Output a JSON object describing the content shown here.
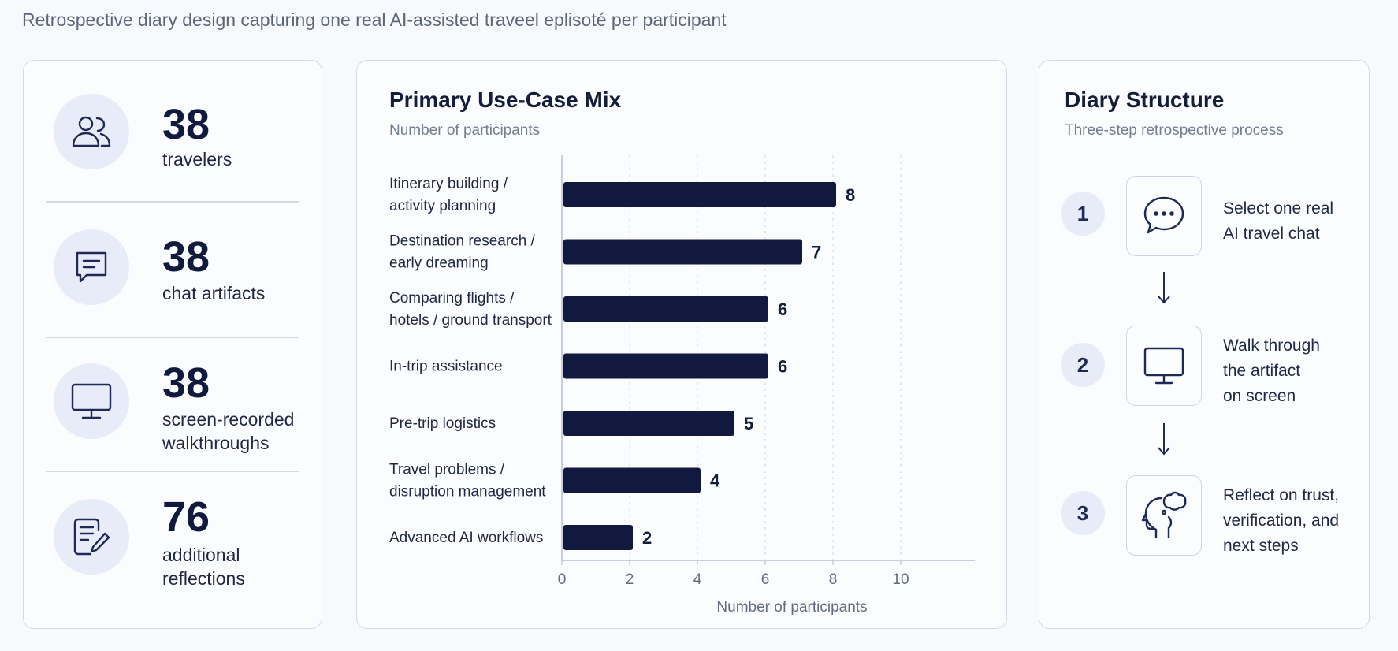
{
  "page": {
    "subtitle": "Retrospective diary design capturing one real AI-assisted traveel eplisoté per participant"
  },
  "stats": [
    {
      "number": "38",
      "label": "travelers",
      "icon": "users-icon"
    },
    {
      "number": "38",
      "label": "chat artifacts",
      "icon": "chat-icon"
    },
    {
      "number": "38",
      "label": "screen-recorded walkthroughs",
      "icon": "monitor-icon"
    },
    {
      "number": "76",
      "label": "additional reflections",
      "icon": "edit-document-icon"
    }
  ],
  "chart": {
    "title": "Primary Use-Case Mix",
    "subtitle": "Number of participants"
  },
  "chart_data": {
    "type": "bar",
    "orientation": "horizontal",
    "title": "Primary Use-Case Mix",
    "subtitle": "Number of participants",
    "categories": [
      [
        "Itinerary building /",
        "activity planning"
      ],
      [
        "Destination research /",
        "early dreaming"
      ],
      [
        "Comparing flights /",
        "hotels / ground transport"
      ],
      [
        "In-trip assistance"
      ],
      [
        "Pre-trip logistics"
      ],
      [
        "Travel problems /",
        "disruption management"
      ],
      [
        "Advanced AI workflows"
      ]
    ],
    "values": [
      8,
      7,
      6,
      6,
      5,
      4,
      2
    ],
    "xlabel": "Number of participants",
    "ylabel": "",
    "xlim": [
      0,
      12
    ],
    "xticks": [
      0,
      2,
      4,
      6,
      8,
      10
    ],
    "bar_color": "#111a3e",
    "grid": "vertical dashed"
  },
  "diary": {
    "title": "Diary Structure",
    "subtitle": "Three-step retrospective process",
    "steps": [
      {
        "number": "1",
        "icon": "chat-dots-icon",
        "lines": [
          "Select one real",
          "AI travel chat"
        ]
      },
      {
        "number": "2",
        "icon": "monitor-icon",
        "lines": [
          "Walk through",
          "the artifact",
          "on screen"
        ]
      },
      {
        "number": "3",
        "icon": "head-thought-icon",
        "lines": [
          "Reflect on trust,",
          "verification, and",
          "next steps"
        ]
      }
    ]
  },
  "colors": {
    "accent": "#111a3e",
    "soft": "#e8ecf8",
    "border": "#d3d9e6",
    "muted_text": "#737c90"
  }
}
